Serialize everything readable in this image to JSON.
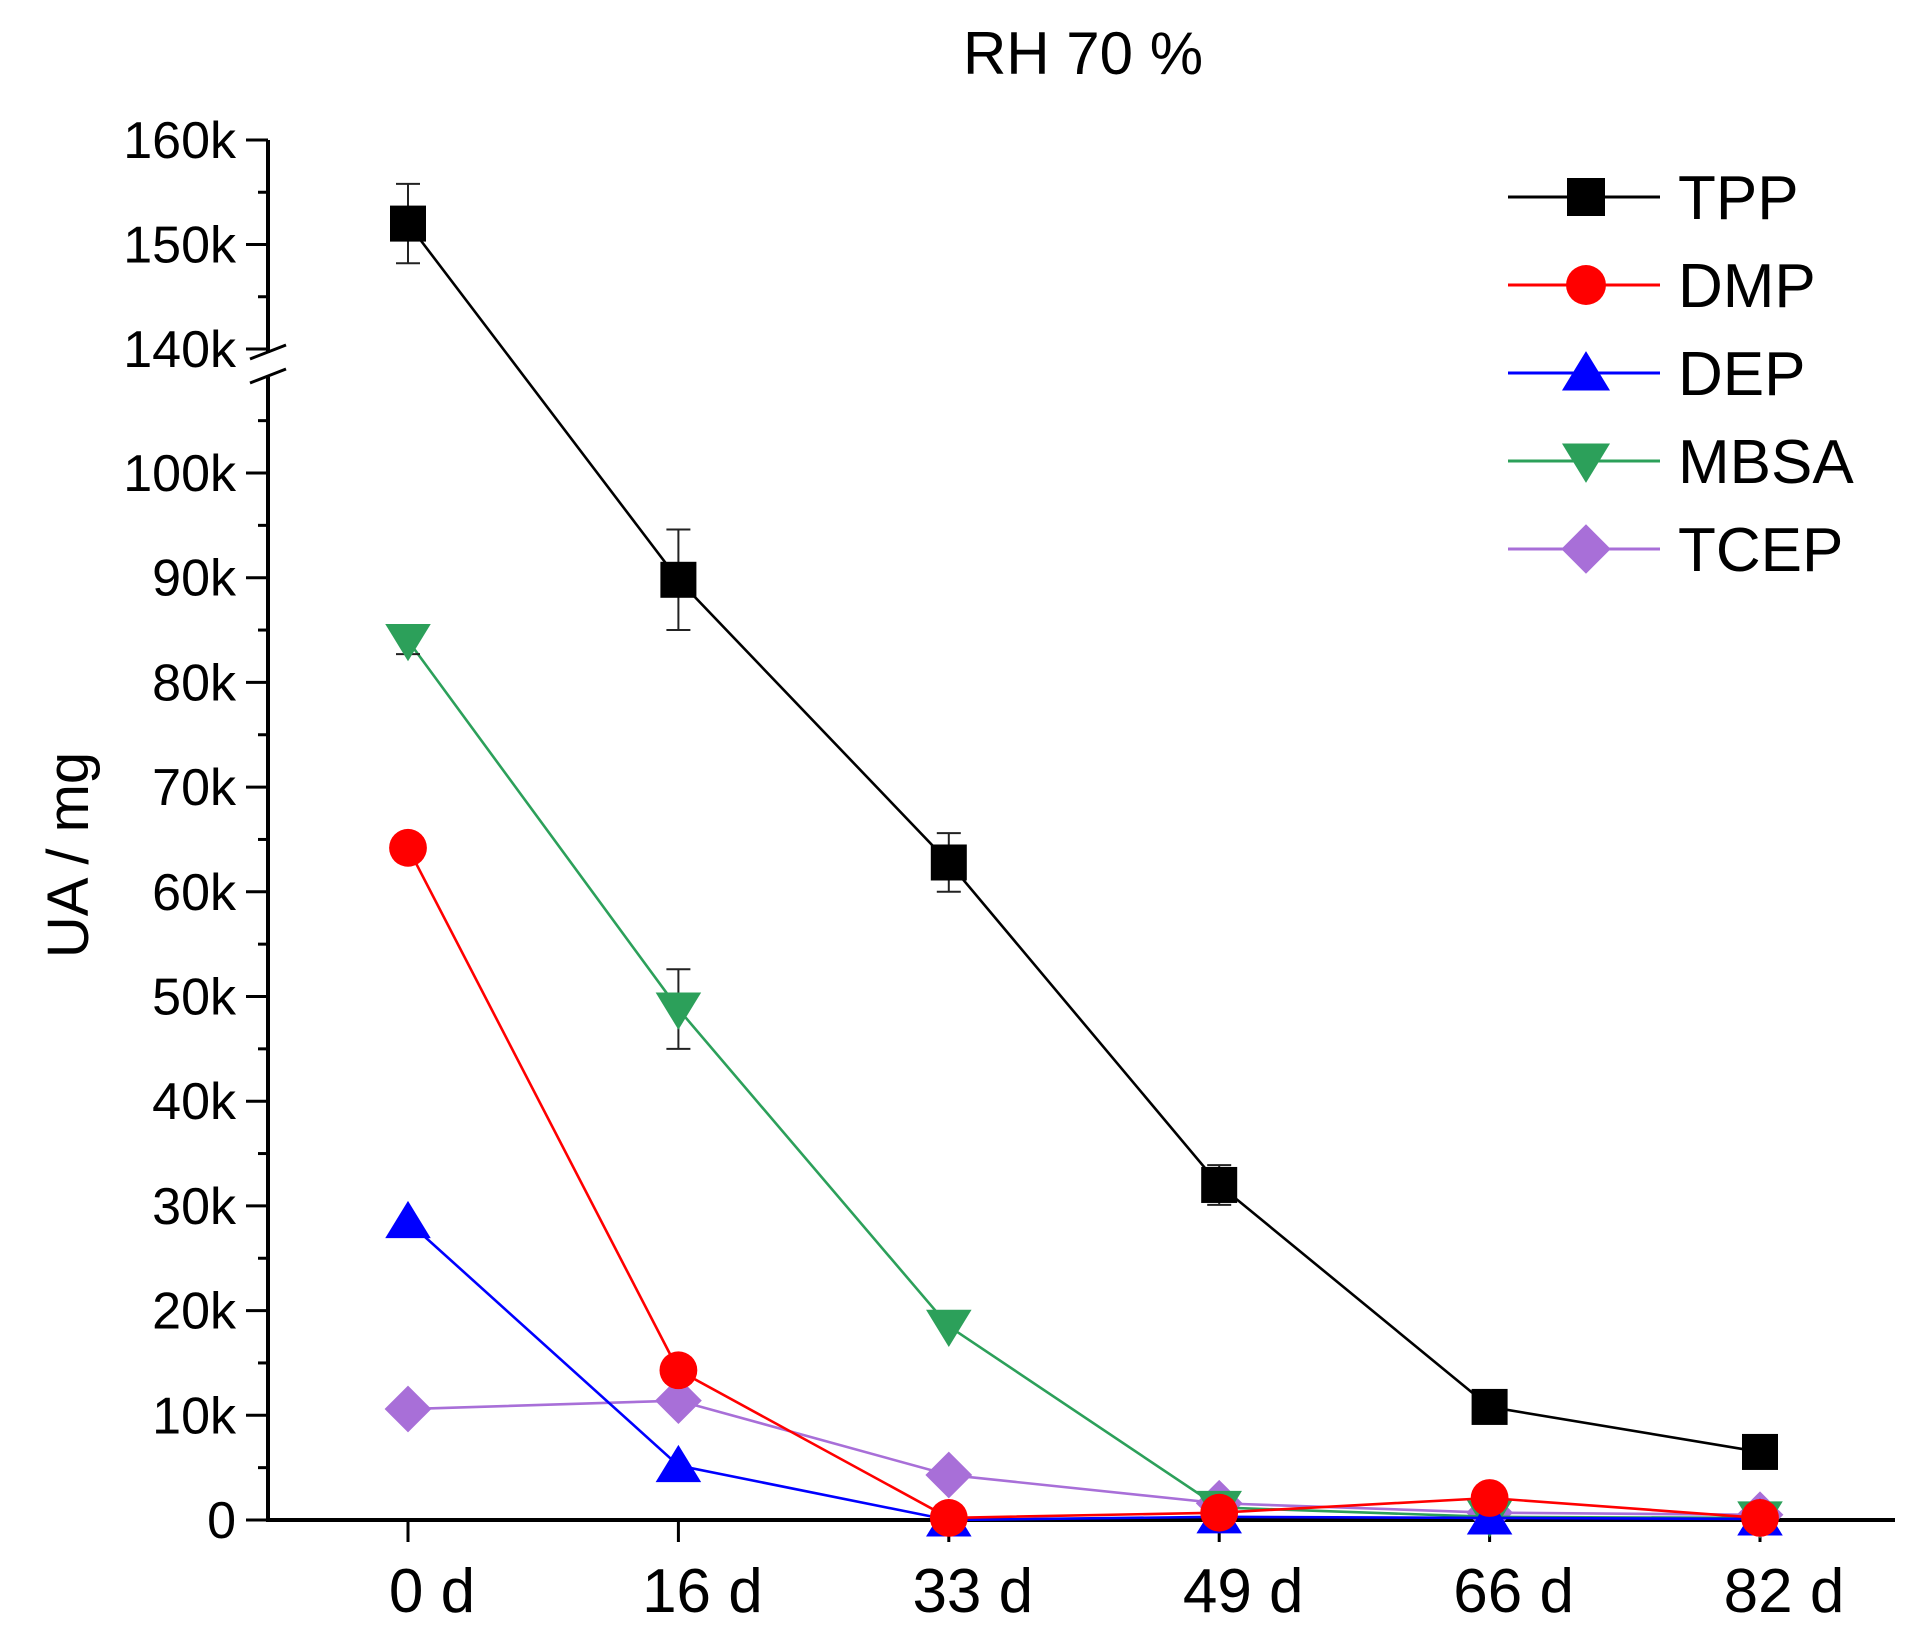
{
  "chart_data": {
    "type": "line",
    "title": "RH 70 %",
    "xlabel": "",
    "ylabel": "UA / mg",
    "categories": [
      "0 d",
      "16 d",
      "33 d",
      "49 d",
      "66 d",
      "82 d"
    ],
    "y_axis_break": [
      110000,
      140000
    ],
    "ylim": [
      0,
      160000
    ],
    "y_ticks": [
      {
        "value": 0,
        "label": "0"
      },
      {
        "value": 10000,
        "label": "10k"
      },
      {
        "value": 20000,
        "label": "20k"
      },
      {
        "value": 30000,
        "label": "30k"
      },
      {
        "value": 40000,
        "label": "40k"
      },
      {
        "value": 50000,
        "label": "50k"
      },
      {
        "value": 60000,
        "label": "60k"
      },
      {
        "value": 70000,
        "label": "70k"
      },
      {
        "value": 80000,
        "label": "80k"
      },
      {
        "value": 90000,
        "label": "90k"
      },
      {
        "value": 100000,
        "label": "100k"
      },
      {
        "value": 140000,
        "label": "140k"
      },
      {
        "value": 150000,
        "label": "150k"
      },
      {
        "value": 160000,
        "label": "160k"
      }
    ],
    "legend_position": "top-right",
    "series": [
      {
        "name": "TPP",
        "color": "#000000",
        "marker": "square",
        "values": [
          152000,
          89800,
          62800,
          32000,
          10800,
          6500
        ],
        "errors": [
          3800,
          4800,
          2800,
          1900,
          0,
          0
        ]
      },
      {
        "name": "DMP",
        "color": "#ff0000",
        "marker": "circle",
        "values": [
          64200,
          14300,
          200,
          700,
          2100,
          200
        ],
        "errors": [
          0,
          0,
          0,
          0,
          0,
          0
        ]
      },
      {
        "name": "DEP",
        "color": "#0000ff",
        "marker": "triangle-up",
        "values": [
          28500,
          5200,
          0,
          300,
          200,
          100
        ],
        "errors": [
          0,
          0,
          0,
          0,
          0,
          0
        ]
      },
      {
        "name": "MBSA",
        "color": "#2ca05a",
        "marker": "triangle-down",
        "values": [
          84000,
          48800,
          18500,
          1200,
          300,
          200
        ],
        "errors": [
          1300,
          3800,
          0,
          0,
          0,
          0
        ]
      },
      {
        "name": "TCEP",
        "color": "#a86fd8",
        "marker": "diamond",
        "values": [
          10600,
          11400,
          4300,
          1600,
          700,
          500
        ],
        "errors": [
          0,
          0,
          0,
          0,
          0,
          0
        ]
      }
    ]
  }
}
